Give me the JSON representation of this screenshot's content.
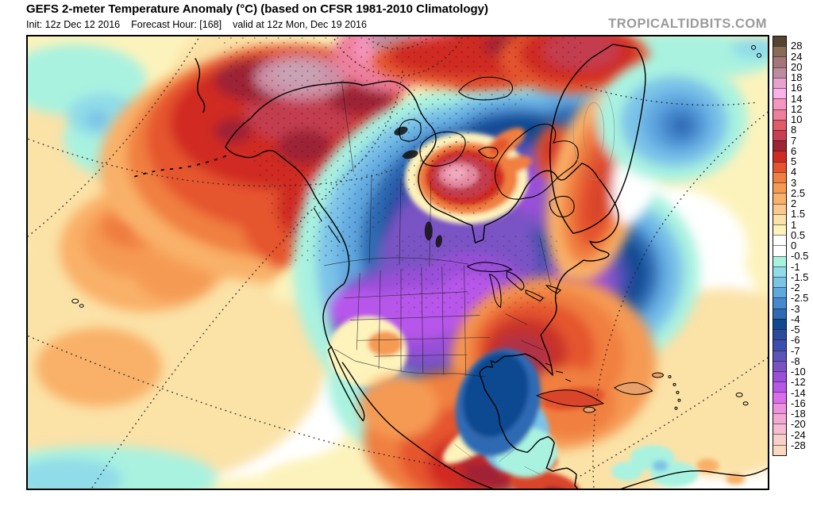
{
  "header": {
    "title": "GEFS 2-meter Temperature Anomaly (°C) (based on CFSR 1981-2010 Climatology)",
    "init_label": "Init: 12z Dec 12 2016",
    "forecast_hour_label": "Forecast Hour: [168]",
    "valid_label": "valid at 12z Mon, Dec 19 2016",
    "watermark": "TROPICALTIDBITS.COM"
  },
  "colorbar": {
    "boundary_labels": [
      "28",
      "24",
      "20",
      "18",
      "16",
      "14",
      "12",
      "10",
      "8",
      "7",
      "6",
      "5",
      "4",
      "3",
      "2.5",
      "2",
      "1.5",
      "1",
      "0.5",
      "0",
      "-0.5",
      "-1",
      "-1.5",
      "-2",
      "-2.5",
      "-3",
      "-4",
      "-5",
      "-6",
      "-7",
      "-8",
      "-10",
      "-12",
      "-14",
      "-16",
      "-18",
      "-20",
      "-24",
      "-28"
    ],
    "band_colors": [
      "#564432",
      "#8A6B55",
      "#A4767B",
      "#BE8C9E",
      "#E8A2CE",
      "#FBB1EC",
      "#F695BD",
      "#EE7E9B",
      "#E15A68",
      "#C93E52",
      "#9E2435",
      "#D02B20",
      "#E5542E",
      "#F07F41",
      "#F59A53",
      "#F9B068",
      "#FBC98D",
      "#FCE1A9",
      "#FDF3BB",
      "#FFFFFF",
      "#FFFFFF",
      "#A9F2E0",
      "#90DCE8",
      "#7CC3E8",
      "#60A8E0",
      "#4789CF",
      "#2E6BB4",
      "#0D4A91",
      "#2D4A9C",
      "#3D4FAE",
      "#5C55B8",
      "#7A52C4",
      "#9A4FD8",
      "#B757EA",
      "#DC6CEE",
      "#EE90E0",
      "#F3A9D2",
      "#F5BCD4",
      "#F7CFCB",
      "#FAD9BE"
    ]
  },
  "map_palette": {
    "ocean_pale_yellow": "#FCF3BC",
    "cream": "#FBE2A7",
    "warm_core_red": "#D02B20",
    "cold_core_navy": "#0D4A91",
    "cold_core_purple": "#9A4FD8"
  }
}
